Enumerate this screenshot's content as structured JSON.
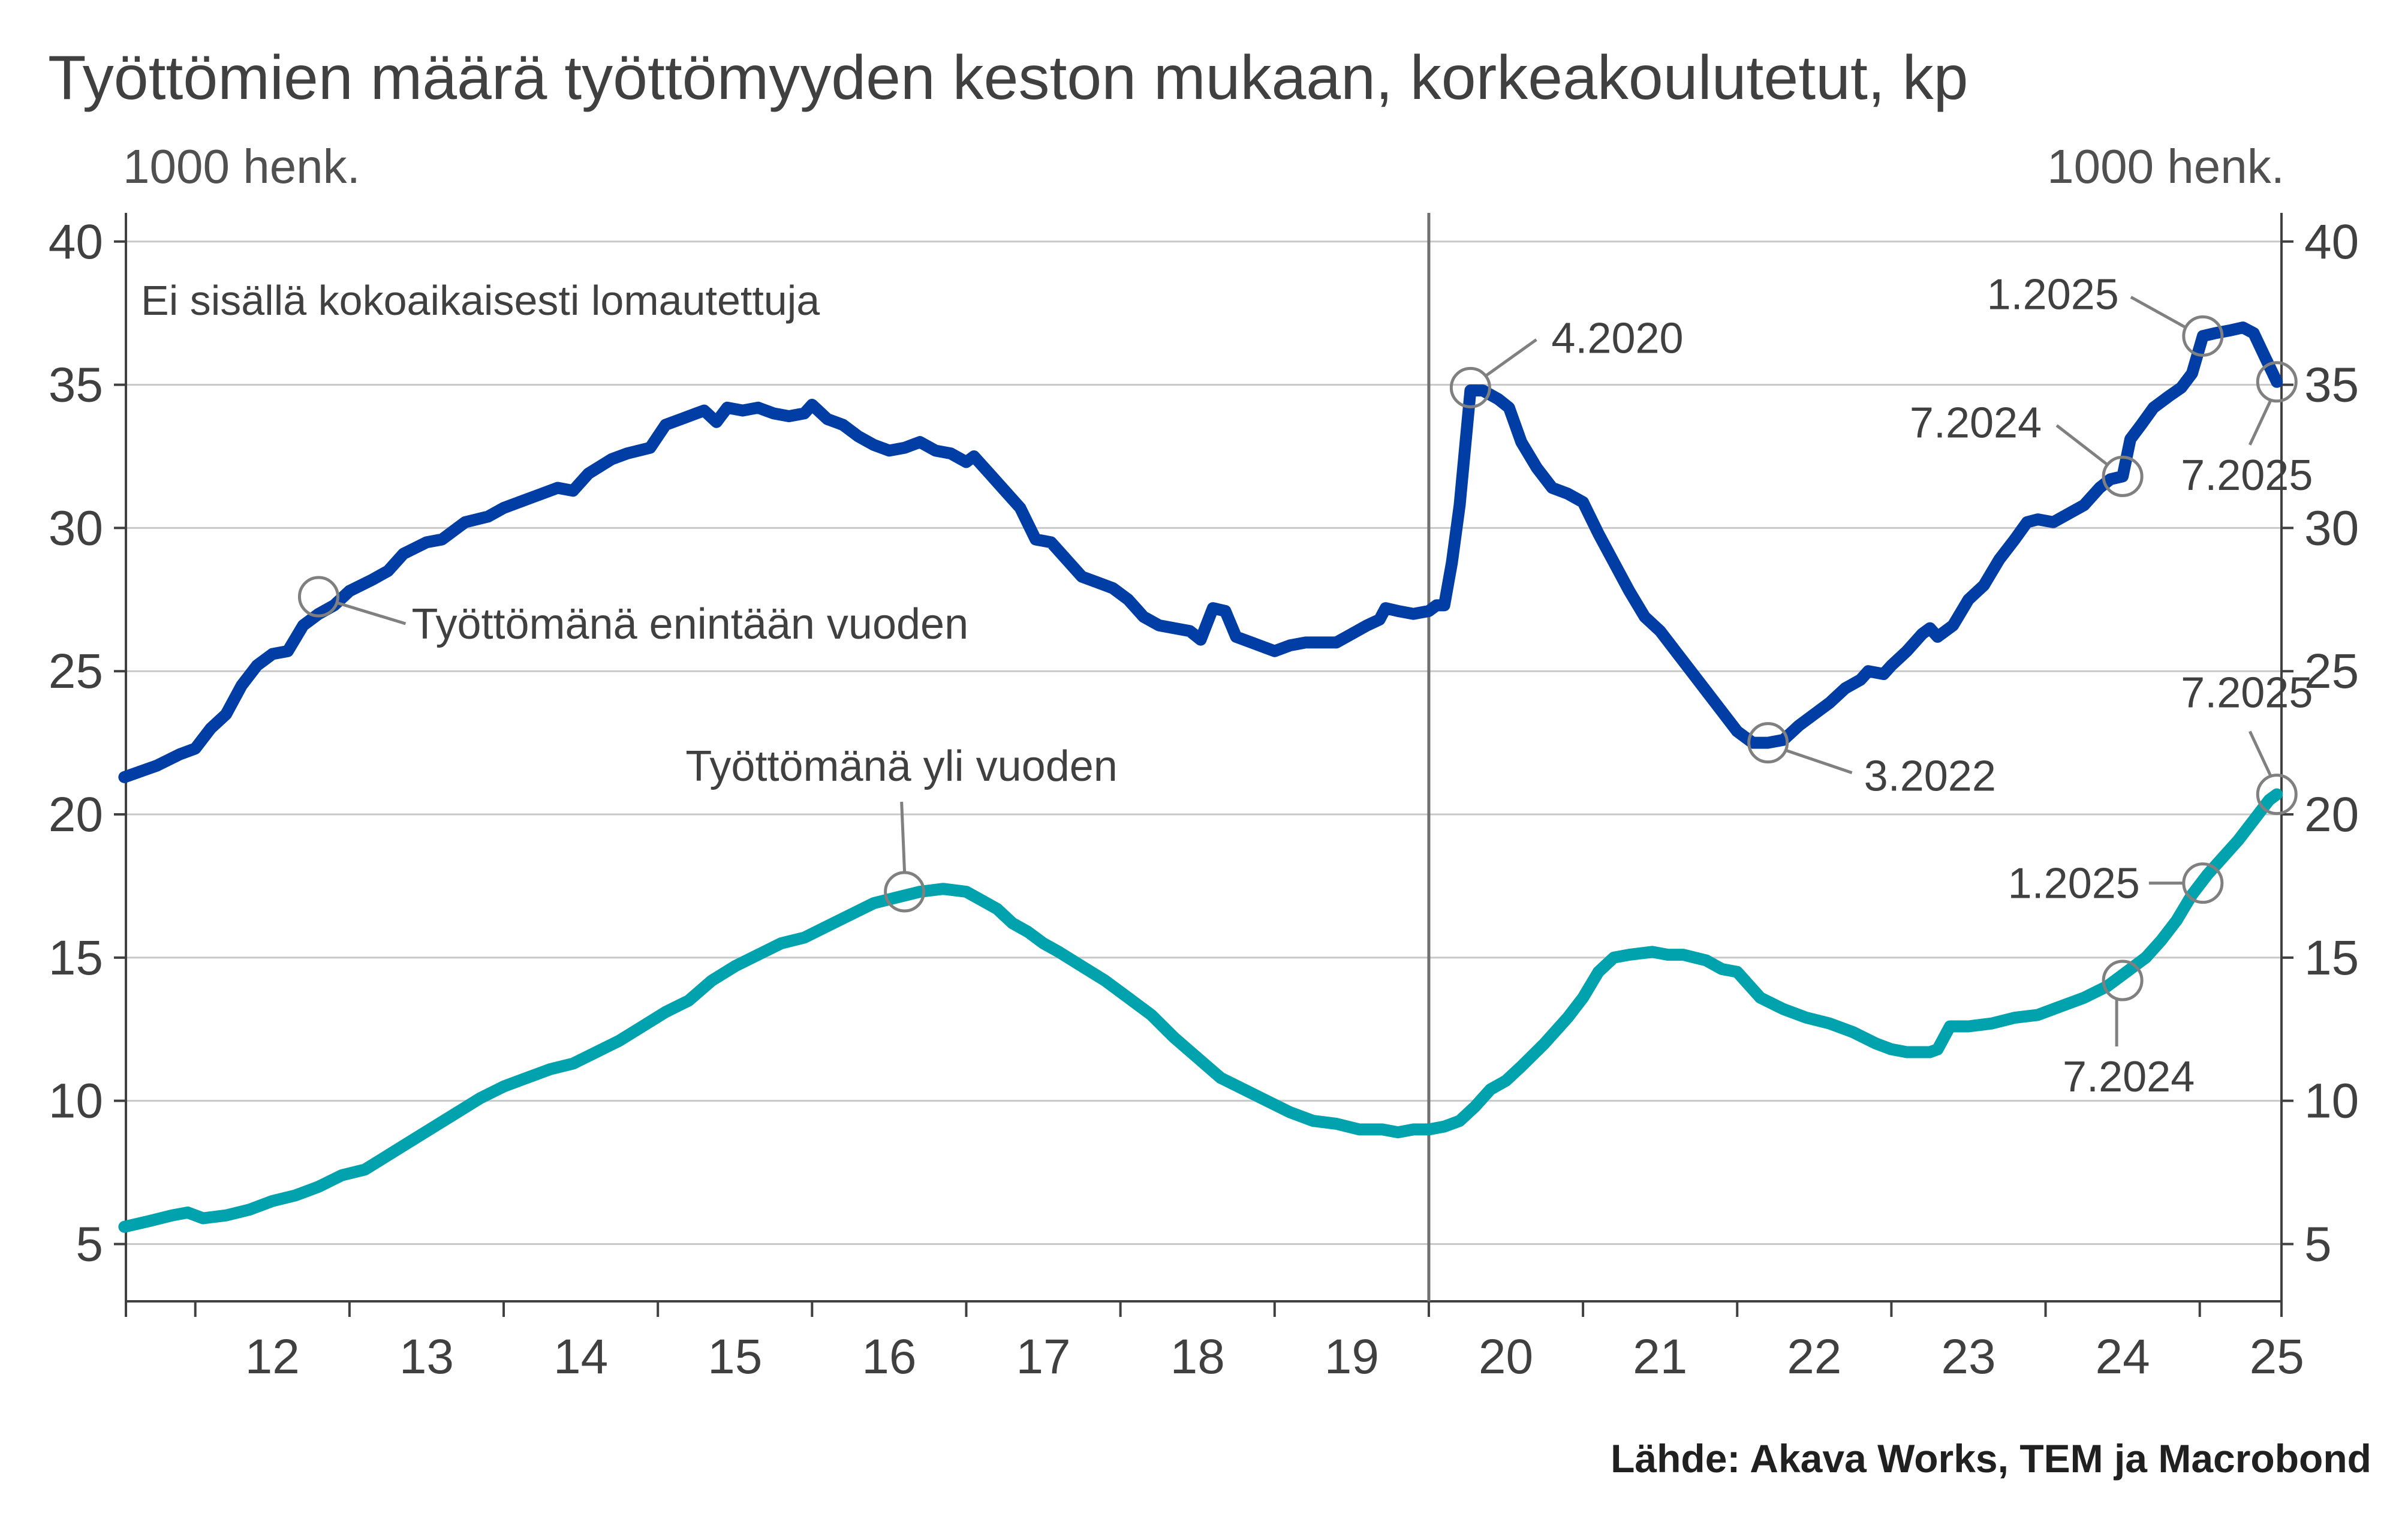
{
  "chart_data": {
    "type": "line",
    "title": "Työttömien määrä työttömyyden keston mukaan, korkeakoulutetut, kp",
    "ylabel_left": "1000 henk.",
    "ylabel_right": "1000 henk.",
    "ylim": [
      3,
      41
    ],
    "yticks": [
      5,
      10,
      15,
      20,
      25,
      30,
      35,
      40
    ],
    "xlim": [
      2011.5,
      2025.5
    ],
    "xtick_labels": [
      "12",
      "13",
      "14",
      "15",
      "16",
      "17",
      "18",
      "19",
      "20",
      "21",
      "22",
      "23",
      "24",
      "25"
    ],
    "grid": true,
    "vline": 2020.0,
    "note": "Ei sisällä kokoaikaisesti lomautettuja",
    "source": "Lähde: Akava Works, TEM ja Macrobond",
    "colors": {
      "short": "#003DA5",
      "long": "#00A3AD",
      "marker": "#808080"
    },
    "series": [
      {
        "name": "Työttömänä enintään vuoden",
        "color": "#003DA5",
        "points": [
          [
            2011.54,
            21.3
          ],
          [
            2011.75,
            21.7
          ],
          [
            2011.9,
            22.1
          ],
          [
            2012.0,
            22.3
          ],
          [
            2012.1,
            23.0
          ],
          [
            2012.2,
            23.5
          ],
          [
            2012.3,
            24.5
          ],
          [
            2012.4,
            25.2
          ],
          [
            2012.5,
            25.6
          ],
          [
            2012.6,
            25.7
          ],
          [
            2012.7,
            26.6
          ],
          [
            2012.8,
            27.0
          ],
          [
            2012.9,
            27.3
          ],
          [
            2013.0,
            27.8
          ],
          [
            2013.15,
            28.2
          ],
          [
            2013.25,
            28.5
          ],
          [
            2013.35,
            29.1
          ],
          [
            2013.5,
            29.5
          ],
          [
            2013.6,
            29.6
          ],
          [
            2013.75,
            30.2
          ],
          [
            2013.9,
            30.4
          ],
          [
            2014.0,
            30.7
          ],
          [
            2014.15,
            31.0
          ],
          [
            2014.25,
            31.2
          ],
          [
            2014.35,
            31.4
          ],
          [
            2014.45,
            31.3
          ],
          [
            2014.55,
            31.9
          ],
          [
            2014.7,
            32.4
          ],
          [
            2014.8,
            32.6
          ],
          [
            2014.95,
            32.8
          ],
          [
            2015.05,
            33.6
          ],
          [
            2015.15,
            33.8
          ],
          [
            2015.25,
            34.0
          ],
          [
            2015.3,
            34.1
          ],
          [
            2015.38,
            33.7
          ],
          [
            2015.45,
            34.2
          ],
          [
            2015.55,
            34.1
          ],
          [
            2015.65,
            34.2
          ],
          [
            2015.75,
            34.0
          ],
          [
            2015.85,
            33.9
          ],
          [
            2015.95,
            34.0
          ],
          [
            2016.0,
            34.3
          ],
          [
            2016.1,
            33.8
          ],
          [
            2016.2,
            33.6
          ],
          [
            2016.3,
            33.2
          ],
          [
            2016.4,
            32.9
          ],
          [
            2016.5,
            32.7
          ],
          [
            2016.6,
            32.8
          ],
          [
            2016.7,
            33.0
          ],
          [
            2016.8,
            32.7
          ],
          [
            2016.9,
            32.6
          ],
          [
            2017.0,
            32.3
          ],
          [
            2017.05,
            32.5
          ],
          [
            2017.15,
            31.9
          ],
          [
            2017.25,
            31.3
          ],
          [
            2017.35,
            30.7
          ],
          [
            2017.45,
            29.6
          ],
          [
            2017.55,
            29.5
          ],
          [
            2017.65,
            28.9
          ],
          [
            2017.75,
            28.3
          ],
          [
            2017.85,
            28.1
          ],
          [
            2017.95,
            27.9
          ],
          [
            2018.05,
            27.5
          ],
          [
            2018.15,
            26.9
          ],
          [
            2018.25,
            26.6
          ],
          [
            2018.35,
            26.5
          ],
          [
            2018.45,
            26.4
          ],
          [
            2018.52,
            26.1
          ],
          [
            2018.6,
            27.2
          ],
          [
            2018.68,
            27.1
          ],
          [
            2018.75,
            26.2
          ],
          [
            2018.85,
            26.0
          ],
          [
            2018.95,
            25.8
          ],
          [
            2019.0,
            25.7
          ],
          [
            2019.1,
            25.9
          ],
          [
            2019.2,
            26.0
          ],
          [
            2019.3,
            26.0
          ],
          [
            2019.4,
            26.0
          ],
          [
            2019.5,
            26.3
          ],
          [
            2019.6,
            26.6
          ],
          [
            2019.68,
            26.8
          ],
          [
            2019.72,
            27.2
          ],
          [
            2019.8,
            27.1
          ],
          [
            2019.9,
            27.0
          ],
          [
            2020.0,
            27.1
          ],
          [
            2020.05,
            27.3
          ],
          [
            2020.1,
            27.3
          ],
          [
            2020.15,
            28.8
          ],
          [
            2020.2,
            30.8
          ],
          [
            2020.27,
            34.8
          ],
          [
            2020.35,
            34.8
          ],
          [
            2020.45,
            34.5
          ],
          [
            2020.52,
            34.2
          ],
          [
            2020.6,
            33.0
          ],
          [
            2020.7,
            32.1
          ],
          [
            2020.8,
            31.4
          ],
          [
            2020.9,
            31.2
          ],
          [
            2021.0,
            30.9
          ],
          [
            2021.1,
            29.8
          ],
          [
            2021.2,
            28.8
          ],
          [
            2021.3,
            27.8
          ],
          [
            2021.4,
            26.9
          ],
          [
            2021.5,
            26.4
          ],
          [
            2021.6,
            25.7
          ],
          [
            2021.7,
            25.0
          ],
          [
            2021.8,
            24.3
          ],
          [
            2021.9,
            23.6
          ],
          [
            2022.0,
            22.9
          ],
          [
            2022.1,
            22.5
          ],
          [
            2022.2,
            22.5
          ],
          [
            2022.3,
            22.6
          ],
          [
            2022.4,
            23.1
          ],
          [
            2022.5,
            23.5
          ],
          [
            2022.6,
            23.9
          ],
          [
            2022.7,
            24.4
          ],
          [
            2022.8,
            24.7
          ],
          [
            2022.85,
            25.0
          ],
          [
            2022.95,
            24.9
          ],
          [
            2023.0,
            25.2
          ],
          [
            2023.1,
            25.7
          ],
          [
            2023.2,
            26.3
          ],
          [
            2023.25,
            26.5
          ],
          [
            2023.3,
            26.2
          ],
          [
            2023.4,
            26.6
          ],
          [
            2023.5,
            27.5
          ],
          [
            2023.6,
            28.0
          ],
          [
            2023.7,
            28.9
          ],
          [
            2023.8,
            29.6
          ],
          [
            2023.88,
            30.2
          ],
          [
            2023.95,
            30.3
          ],
          [
            2024.05,
            30.2
          ],
          [
            2024.15,
            30.5
          ],
          [
            2024.25,
            30.8
          ],
          [
            2024.35,
            31.4
          ],
          [
            2024.42,
            31.7
          ],
          [
            2024.5,
            31.8
          ],
          [
            2024.55,
            33.1
          ],
          [
            2024.62,
            33.6
          ],
          [
            2024.7,
            34.2
          ],
          [
            2024.8,
            34.6
          ],
          [
            2024.88,
            34.9
          ],
          [
            2024.95,
            35.4
          ],
          [
            2025.02,
            36.7
          ],
          [
            2025.1,
            36.8
          ],
          [
            2025.2,
            36.9
          ],
          [
            2025.28,
            37.0
          ],
          [
            2025.35,
            36.8
          ],
          [
            2025.42,
            36.0
          ],
          [
            2025.5,
            35.1
          ]
        ]
      },
      {
        "name": "Työttömänä yli vuoden",
        "color": "#00A3AD",
        "points": [
          [
            2011.54,
            5.6
          ],
          [
            2011.7,
            5.8
          ],
          [
            2011.85,
            6.0
          ],
          [
            2011.95,
            6.1
          ],
          [
            2012.05,
            5.9
          ],
          [
            2012.2,
            6.0
          ],
          [
            2012.35,
            6.2
          ],
          [
            2012.5,
            6.5
          ],
          [
            2012.65,
            6.7
          ],
          [
            2012.8,
            7.0
          ],
          [
            2012.95,
            7.4
          ],
          [
            2013.1,
            7.6
          ],
          [
            2013.25,
            8.1
          ],
          [
            2013.4,
            8.6
          ],
          [
            2013.55,
            9.1
          ],
          [
            2013.7,
            9.6
          ],
          [
            2013.85,
            10.1
          ],
          [
            2014.0,
            10.5
          ],
          [
            2014.15,
            10.8
          ],
          [
            2014.3,
            11.1
          ],
          [
            2014.45,
            11.3
          ],
          [
            2014.6,
            11.7
          ],
          [
            2014.75,
            12.1
          ],
          [
            2014.9,
            12.6
          ],
          [
            2015.05,
            13.1
          ],
          [
            2015.2,
            13.5
          ],
          [
            2015.35,
            14.2
          ],
          [
            2015.5,
            14.7
          ],
          [
            2015.65,
            15.1
          ],
          [
            2015.8,
            15.5
          ],
          [
            2015.95,
            15.7
          ],
          [
            2016.1,
            16.1
          ],
          [
            2016.25,
            16.5
          ],
          [
            2016.4,
            16.9
          ],
          [
            2016.55,
            17.1
          ],
          [
            2016.7,
            17.3
          ],
          [
            2016.85,
            17.4
          ],
          [
            2017.0,
            17.3
          ],
          [
            2017.1,
            17.0
          ],
          [
            2017.2,
            16.7
          ],
          [
            2017.3,
            16.2
          ],
          [
            2017.4,
            15.9
          ],
          [
            2017.5,
            15.5
          ],
          [
            2017.6,
            15.2
          ],
          [
            2017.75,
            14.7
          ],
          [
            2017.9,
            14.2
          ],
          [
            2018.05,
            13.6
          ],
          [
            2018.2,
            13.0
          ],
          [
            2018.35,
            12.2
          ],
          [
            2018.5,
            11.5
          ],
          [
            2018.65,
            10.8
          ],
          [
            2018.8,
            10.4
          ],
          [
            2018.95,
            10.0
          ],
          [
            2019.1,
            9.6
          ],
          [
            2019.25,
            9.3
          ],
          [
            2019.4,
            9.2
          ],
          [
            2019.55,
            9.0
          ],
          [
            2019.7,
            9.0
          ],
          [
            2019.8,
            8.9
          ],
          [
            2019.9,
            9.0
          ],
          [
            2020.0,
            9.0
          ],
          [
            2020.1,
            9.1
          ],
          [
            2020.2,
            9.3
          ],
          [
            2020.3,
            9.8
          ],
          [
            2020.4,
            10.4
          ],
          [
            2020.5,
            10.7
          ],
          [
            2020.6,
            11.2
          ],
          [
            2020.75,
            12.0
          ],
          [
            2020.9,
            12.9
          ],
          [
            2021.0,
            13.6
          ],
          [
            2021.1,
            14.5
          ],
          [
            2021.2,
            15.0
          ],
          [
            2021.3,
            15.1
          ],
          [
            2021.45,
            15.2
          ],
          [
            2021.55,
            15.1
          ],
          [
            2021.65,
            15.1
          ],
          [
            2021.8,
            14.9
          ],
          [
            2021.9,
            14.6
          ],
          [
            2022.0,
            14.5
          ],
          [
            2022.15,
            13.6
          ],
          [
            2022.3,
            13.2
          ],
          [
            2022.45,
            12.9
          ],
          [
            2022.6,
            12.7
          ],
          [
            2022.75,
            12.4
          ],
          [
            2022.9,
            12.0
          ],
          [
            2023.0,
            11.8
          ],
          [
            2023.1,
            11.7
          ],
          [
            2023.25,
            11.7
          ],
          [
            2023.3,
            11.8
          ],
          [
            2023.38,
            12.6
          ],
          [
            2023.5,
            12.6
          ],
          [
            2023.65,
            12.7
          ],
          [
            2023.8,
            12.9
          ],
          [
            2023.95,
            13.0
          ],
          [
            2024.1,
            13.3
          ],
          [
            2024.25,
            13.6
          ],
          [
            2024.4,
            14.0
          ],
          [
            2024.55,
            14.6
          ],
          [
            2024.65,
            15.0
          ],
          [
            2024.75,
            15.6
          ],
          [
            2024.85,
            16.3
          ],
          [
            2024.95,
            17.2
          ],
          [
            2025.05,
            17.9
          ],
          [
            2025.15,
            18.5
          ],
          [
            2025.25,
            19.1
          ],
          [
            2025.35,
            19.8
          ],
          [
            2025.45,
            20.5
          ],
          [
            2025.5,
            20.7
          ]
        ]
      }
    ],
    "series_labels": [
      {
        "text": "Työttömänä enintään vuoden",
        "marker": [
          2012.8,
          27.6
        ]
      },
      {
        "text": "Työttömänä yli vuoden",
        "marker": [
          2016.6,
          17.3
        ]
      }
    ],
    "annotations": [
      {
        "text": "4.2020",
        "marker": [
          2020.27,
          34.9
        ]
      },
      {
        "text": "3.2022",
        "marker": [
          2022.2,
          22.5
        ]
      },
      {
        "text": "7.2024",
        "marker": [
          2024.5,
          31.8
        ]
      },
      {
        "text": "1.2025",
        "marker": [
          2025.02,
          36.7
        ]
      },
      {
        "text": "7.2025",
        "marker": [
          2025.5,
          35.1
        ]
      },
      {
        "text": "7.2025",
        "marker": [
          2025.5,
          20.7
        ]
      },
      {
        "text": "1.2025",
        "marker": [
          2025.02,
          17.6
        ]
      },
      {
        "text": "7.2024",
        "marker": [
          2024.5,
          14.2
        ]
      }
    ]
  }
}
